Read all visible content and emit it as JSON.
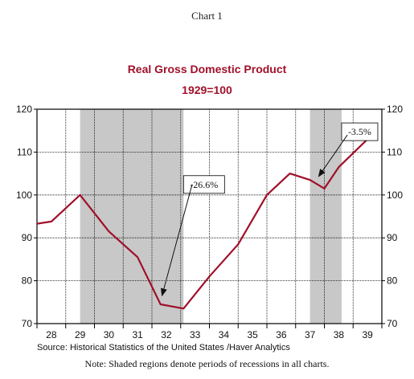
{
  "header": {
    "chart_label": "Chart 1"
  },
  "colors": {
    "line": "#a0102a",
    "recession": "#c8c8c8",
    "grid": "#000000"
  },
  "chart_data": {
    "type": "line",
    "title": "Real Gross Domestic Product",
    "subtitle": "1929=100",
    "xlabel": "",
    "ylabel": "",
    "ylim": [
      70,
      120
    ],
    "xlim": [
      27.5,
      39.5
    ],
    "yticks": [
      70,
      80,
      90,
      100,
      110,
      120
    ],
    "xtick_labels": [
      "28",
      "29",
      "30",
      "31",
      "32",
      "33",
      "34",
      "35",
      "36",
      "37",
      "38",
      "39"
    ],
    "grid": true,
    "series": [
      {
        "x": [
          27.5,
          28.0,
          29.0,
          30.0,
          31.0,
          31.8,
          32.6,
          33.5,
          34.5,
          35.5,
          36.3,
          37.0,
          37.5,
          38.0,
          39.0,
          39.35
        ],
        "y": [
          93.3,
          93.8,
          100.0,
          91.5,
          85.5,
          74.5,
          73.5,
          81.0,
          88.5,
          100.0,
          105.0,
          103.5,
          101.5,
          106.5,
          113.0,
          114.0
        ]
      }
    ],
    "recessions": [
      {
        "start": 29.0,
        "end": 32.6
      },
      {
        "start": 37.0,
        "end": 38.1
      }
    ],
    "annotations": [
      {
        "text": "-26.6%",
        "box_x": 32.6,
        "box_y": 104.5,
        "arrow_from": [
          32.9,
          102.5
        ],
        "arrow_to": [
          31.85,
          76.5
        ]
      },
      {
        "text": "-3.5%",
        "box_x": 38.1,
        "box_y": 116.8,
        "arrow_from": [
          38.3,
          114.0
        ],
        "arrow_to": [
          37.3,
          104.3
        ]
      }
    ]
  },
  "footer": {
    "source": "Source:  Historical Statistics of the United States /Haver Analytics",
    "note": "Note:  Shaded regions denote periods of recessions in all charts."
  }
}
